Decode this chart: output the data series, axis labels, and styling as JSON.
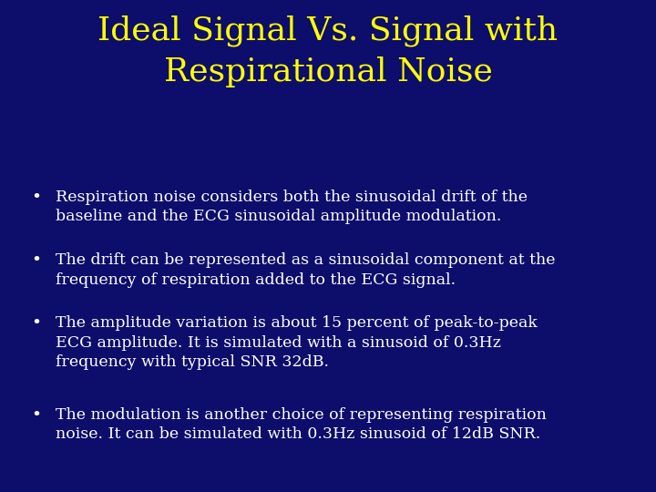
{
  "title_line1": "Ideal Signal Vs. Signal with",
  "title_line2": "Respirational Noise",
  "title_color": "#FFFF00",
  "background_color": "#0d0d6b",
  "bullet_color": "#FFFFFF",
  "bullet_points": [
    "Respiration noise considers both the sinusoidal drift of the\nbaseline and the ECG sinusoidal amplitude modulation.",
    "The drift can be represented as a sinusoidal component at the\nfrequency of respiration added to the ECG signal.",
    "The amplitude variation is about 15 percent of peak-to-peak\nECG amplitude. It is simulated with a sinusoid of 0.3Hz\nfrequency with typical SNR 32dB.",
    "The modulation is another choice of representing respiration\nnoise. It can be simulated with 0.3Hz sinusoid of 12dB SNR."
  ],
  "title_fontsize": 26,
  "bullet_fontsize": 12.5,
  "fig_width": 7.2,
  "fig_height": 5.4,
  "dpi": 100
}
